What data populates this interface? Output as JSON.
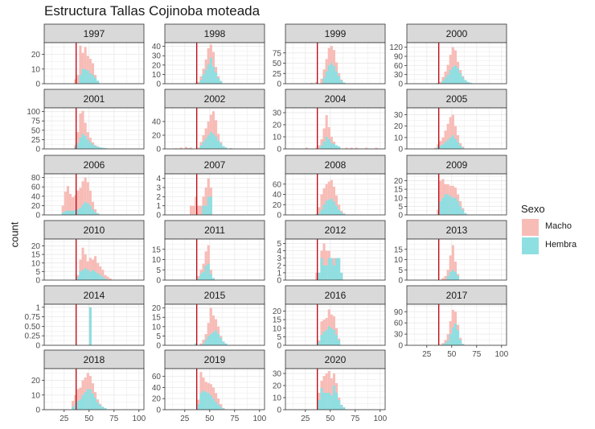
{
  "title": "Estructura Tallas Cojinoba moteada",
  "y_axis_label": "count",
  "legend": {
    "title": "Sexo",
    "items": [
      {
        "label": "Macho",
        "color": "#f8bcb7"
      },
      {
        "label": "Hembra",
        "color": "#8edfe2"
      }
    ]
  },
  "colors": {
    "macho": "#f8bcb7",
    "hembra": "#8edfe2",
    "reference_line": "#c0000b",
    "strip_fill": "#d9d9d9",
    "grid": "#ebebeb"
  },
  "chart_data": {
    "type": "histogram",
    "layout": "facet_wrap",
    "stacked": true,
    "bin_width": 2.5,
    "xlim": [
      5,
      105
    ],
    "x_ticks": [
      25,
      50,
      75,
      100
    ],
    "reference_line_x": 37,
    "grid": true,
    "legend_position": "right",
    "series": [
      "Macho",
      "Hembra"
    ],
    "panels": [
      {
        "label": "1997",
        "y_ticks": [
          0,
          10,
          20
        ],
        "ymax": 28,
        "hembra": {
          "40": 6,
          "42.5": 10,
          "45": 10,
          "47.5": 9,
          "50": 7,
          "52.5": 6,
          "55": 4,
          "57.5": 2
        },
        "total": {
          "35": 3,
          "37.5": 6,
          "40": 26,
          "42.5": 21,
          "45": 25,
          "47.5": 19,
          "50": 17,
          "52.5": 14,
          "55": 6,
          "57.5": 2
        }
      },
      {
        "label": "1998",
        "y_ticks": [
          0,
          10,
          20,
          30,
          40
        ],
        "ymax": 44,
        "hembra": {
          "40": 4,
          "42.5": 10,
          "45": 15,
          "47.5": 21,
          "50": 28,
          "52.5": 18,
          "55": 12,
          "57.5": 6,
          "60": 3
        },
        "total": {
          "35": 1,
          "37.5": 2,
          "40": 8,
          "42.5": 16,
          "45": 26,
          "47.5": 38,
          "50": 42,
          "52.5": 34,
          "55": 18,
          "57.5": 8,
          "60": 3
        }
      },
      {
        "label": "1999",
        "y_ticks": [
          0,
          25,
          50,
          75
        ],
        "ymax": 100,
        "hembra": {
          "42.5": 15,
          "45": 30,
          "47.5": 45,
          "50": 50,
          "52.5": 43,
          "55": 30,
          "57.5": 18,
          "60": 8,
          "62.5": 3
        },
        "total": {
          "25": 1,
          "30": 2,
          "35": 4,
          "40": 12,
          "42.5": 35,
          "45": 60,
          "47.5": 87,
          "50": 92,
          "52.5": 82,
          "55": 52,
          "57.5": 26,
          "60": 10,
          "62.5": 3
        }
      },
      {
        "label": "2000",
        "y_ticks": [
          0,
          30,
          60,
          90,
          120
        ],
        "ymax": 135,
        "hembra": {
          "35": 2,
          "40": 10,
          "42.5": 20,
          "45": 30,
          "47.5": 45,
          "50": 55,
          "52.5": 60,
          "55": 50,
          "57.5": 35,
          "60": 22,
          "62.5": 12,
          "65": 6,
          "67.5": 3,
          "70": 1
        },
        "total": {
          "32.5": 1,
          "35": 3,
          "37.5": 6,
          "40": 22,
          "42.5": 40,
          "45": 62,
          "47.5": 95,
          "50": 120,
          "52.5": 110,
          "55": 72,
          "57.5": 45,
          "60": 25,
          "62.5": 12,
          "65": 6,
          "67.5": 3,
          "70": 1
        }
      },
      {
        "label": "2001",
        "y_ticks": [
          0,
          25,
          50,
          75,
          100
        ],
        "ymax": 110,
        "hembra": {
          "35": 5,
          "37.5": 15,
          "40": 30,
          "42.5": 40,
          "45": 35,
          "47.5": 25,
          "50": 18,
          "52.5": 12,
          "55": 8,
          "57.5": 6,
          "60": 4,
          "62.5": 3,
          "65": 2,
          "67.5": 1
        },
        "total": {
          "35": 10,
          "37.5": 45,
          "40": 95,
          "42.5": 102,
          "45": 70,
          "47.5": 45,
          "50": 30,
          "52.5": 18,
          "55": 10,
          "57.5": 7,
          "60": 4,
          "62.5": 3,
          "65": 2,
          "67.5": 1
        }
      },
      {
        "label": "2002",
        "y_ticks": [
          0,
          20,
          40
        ],
        "ymax": 60,
        "hembra": {
          "27.5": 1,
          "40": 5,
          "42.5": 10,
          "45": 15,
          "47.5": 20,
          "50": 25,
          "52.5": 22,
          "55": 18,
          "57.5": 12,
          "60": 8,
          "62.5": 4,
          "65": 2,
          "70": 1
        },
        "total": {
          "15": 1,
          "20": 2,
          "25": 3,
          "27.5": 1,
          "30": 2,
          "37.5": 2,
          "40": 10,
          "42.5": 20,
          "45": 30,
          "47.5": 40,
          "50": 50,
          "52.5": 55,
          "55": 42,
          "57.5": 22,
          "60": 10,
          "62.5": 4,
          "65": 2,
          "70": 1
        }
      },
      {
        "label": "2004",
        "y_ticks": [
          0,
          10,
          20,
          30
        ],
        "ymax": 34,
        "hembra": {
          "40": 3,
          "42.5": 6,
          "45": 10,
          "47.5": 8,
          "50": 5,
          "52.5": 4,
          "55": 3,
          "57.5": 2
        },
        "total": {
          "25": 1,
          "35": 1,
          "37.5": 3,
          "40": 8,
          "42.5": 17,
          "45": 28,
          "47.5": 18,
          "50": 10,
          "52.5": 6,
          "55": 3,
          "57.5": 2,
          "65": 1,
          "70": 1,
          "75": 1,
          "85": 1,
          "95": 1
        }
      },
      {
        "label": "2005",
        "y_ticks": [
          0,
          10,
          20,
          30
        ],
        "ymax": 36,
        "hembra": {
          "35": 2,
          "37.5": 3,
          "40": 4,
          "42.5": 6,
          "45": 8,
          "47.5": 10,
          "50": 12,
          "52.5": 9,
          "55": 6,
          "57.5": 3,
          "60": 1
        },
        "total": {
          "32.5": 1,
          "35": 4,
          "37.5": 7,
          "40": 10,
          "42.5": 16,
          "45": 22,
          "47.5": 28,
          "50": 30,
          "52.5": 20,
          "55": 12,
          "57.5": 5,
          "60": 2
        }
      },
      {
        "label": "2006",
        "y_ticks": [
          0,
          20,
          40,
          60,
          80
        ],
        "ymax": 88,
        "hembra": {
          "22.5": 5,
          "25": 8,
          "27.5": 10,
          "30": 8,
          "32.5": 9,
          "35": 10,
          "37.5": 12,
          "40": 15,
          "42.5": 22,
          "45": 28,
          "47.5": 25,
          "50": 20,
          "52.5": 12,
          "55": 6,
          "57.5": 3
        },
        "total": {
          "22.5": 20,
          "25": 50,
          "27.5": 62,
          "30": 45,
          "32.5": 38,
          "35": 42,
          "37.5": 52,
          "40": 58,
          "42.5": 72,
          "45": 80,
          "47.5": 70,
          "50": 52,
          "52.5": 28,
          "55": 12,
          "57.5": 4
        }
      },
      {
        "label": "2007",
        "y_ticks": [
          0,
          1,
          2,
          3,
          4
        ],
        "ymax": 4.5,
        "hembra": {
          "42.5": 1,
          "45": 1,
          "47.5": 2,
          "50": 2
        },
        "total": {
          "30": 1,
          "32.5": 1,
          "35": 2,
          "37.5": 1,
          "40": 1,
          "42.5": 2,
          "45": 3,
          "47.5": 4,
          "50": 3
        }
      },
      {
        "label": "2008",
        "y_ticks": [
          0,
          20,
          40,
          60
        ],
        "ymax": 80,
        "hembra": {
          "37.5": 3,
          "40": 10,
          "42.5": 20,
          "45": 28,
          "47.5": 30,
          "50": 32,
          "52.5": 26,
          "55": 18,
          "57.5": 10,
          "60": 5,
          "62.5": 2
        },
        "total": {
          "35": 2,
          "37.5": 15,
          "40": 40,
          "42.5": 52,
          "45": 60,
          "47.5": 65,
          "50": 68,
          "52.5": 55,
          "55": 38,
          "57.5": 20,
          "60": 8,
          "62.5": 3
        }
      },
      {
        "label": "2009",
        "y_ticks": [
          0,
          5,
          10,
          15,
          20
        ],
        "ymax": 24,
        "hembra": {
          "37.5": 8,
          "40": 10,
          "42.5": 12,
          "45": 12,
          "47.5": 11,
          "50": 10,
          "52.5": 10,
          "55": 8,
          "57.5": 5,
          "60": 3,
          "62.5": 1
        },
        "total": {
          "35": 3,
          "37.5": 20,
          "40": 21,
          "42.5": 18,
          "45": 18,
          "47.5": 17,
          "50": 17,
          "52.5": 16,
          "55": 12,
          "57.5": 8,
          "60": 4,
          "62.5": 1
        }
      },
      {
        "label": "2010",
        "y_ticks": [
          0,
          5,
          10,
          15,
          20
        ],
        "ymax": 24,
        "hembra": {
          "37.5": 2,
          "40": 5,
          "42.5": 6,
          "45": 7,
          "47.5": 6,
          "50": 5,
          "52.5": 6,
          "55": 5,
          "57.5": 4,
          "60": 3,
          "62.5": 2,
          "65": 1
        },
        "total": {
          "37.5": 3,
          "40": 12,
          "42.5": 19,
          "45": 15,
          "47.5": 11,
          "50": 13,
          "52.5": 12,
          "55": 14,
          "57.5": 10,
          "60": 8,
          "62.5": 6,
          "65": 3,
          "67.5": 2,
          "70": 1
        }
      },
      {
        "label": "2011",
        "y_ticks": [
          0,
          5,
          10,
          15
        ],
        "ymax": 20,
        "hembra": {
          "37.5": 1,
          "40": 3,
          "42.5": 4,
          "45": 7,
          "47.5": 8,
          "50": 3,
          "52.5": 1
        },
        "total": {
          "37.5": 2,
          "40": 5,
          "42.5": 8,
          "45": 14,
          "47.5": 17,
          "50": 5,
          "52.5": 1
        }
      },
      {
        "label": "2012",
        "y_ticks": [
          0,
          1,
          2,
          3,
          4,
          5
        ],
        "ymax": 5.6,
        "hembra": {
          "37.5": 1,
          "40": 3,
          "42.5": 2,
          "45": 2,
          "47.5": 3,
          "50": 3,
          "52.5": 2,
          "55": 3,
          "57.5": 3,
          "60": 1
        },
        "total": {
          "35": 1,
          "37.5": 1,
          "40": 4,
          "42.5": 5,
          "45": 4,
          "47.5": 4,
          "50": 3,
          "52.5": 3,
          "55": 3,
          "57.5": 3,
          "60": 1
        }
      },
      {
        "label": "2013",
        "y_ticks": [
          0,
          5,
          10,
          15
        ],
        "ymax": 20,
        "hembra": {
          "45": 2,
          "47.5": 4,
          "50": 5,
          "52.5": 4,
          "55": 2
        },
        "total": {
          "40": 1,
          "42.5": 2,
          "45": 5,
          "47.5": 12,
          "50": 17,
          "52.5": 9,
          "55": 3
        }
      },
      {
        "label": "2014",
        "y_ticks": [
          0.0,
          0.25,
          0.5,
          0.75,
          1.0
        ],
        "ymax": 1.08,
        "hembra": {
          "50": 1
        },
        "total": {
          "50": 1
        }
      },
      {
        "label": "2015",
        "y_ticks": [
          0,
          5,
          10,
          15,
          20
        ],
        "ymax": 22,
        "hembra": {
          "35": 1,
          "42.5": 1,
          "45": 3,
          "47.5": 5,
          "50": 6,
          "52.5": 7,
          "55": 8,
          "57.5": 6,
          "60": 4,
          "62.5": 2,
          "65": 1
        },
        "total": {
          "35": 1,
          "40": 1,
          "42.5": 3,
          "45": 6,
          "47.5": 12,
          "50": 20,
          "52.5": 16,
          "55": 14,
          "57.5": 10,
          "60": 5,
          "62.5": 2,
          "65": 1
        }
      },
      {
        "label": "2016",
        "y_ticks": [
          0,
          5,
          10,
          15,
          20
        ],
        "ymax": 24,
        "hembra": {
          "37.5": 2,
          "40": 6,
          "42.5": 8,
          "45": 9,
          "47.5": 11,
          "50": 10,
          "52.5": 9,
          "55": 6,
          "57.5": 3
        },
        "total": {
          "37.5": 3,
          "40": 14,
          "42.5": 15,
          "45": 16,
          "47.5": 21,
          "50": 18,
          "52.5": 17,
          "55": 10,
          "57.5": 4
        }
      },
      {
        "label": "2017",
        "y_ticks": [
          0,
          30,
          60,
          90
        ],
        "ymax": 110,
        "hembra": {
          "40": 3,
          "42.5": 6,
          "45": 12,
          "47.5": 30,
          "50": 48,
          "52.5": 58,
          "55": 40,
          "57.5": 15,
          "60": 3
        },
        "total": {
          "35": 1,
          "37.5": 2,
          "40": 6,
          "42.5": 14,
          "45": 30,
          "47.5": 65,
          "50": 95,
          "52.5": 90,
          "55": 55,
          "57.5": 20,
          "60": 4
        }
      },
      {
        "label": "2018",
        "y_ticks": [
          0,
          10,
          20
        ],
        "ymax": 28,
        "hembra": {
          "32.5": 2,
          "35": 4,
          "37.5": 6,
          "40": 7,
          "42.5": 10,
          "45": 12,
          "47.5": 14,
          "50": 14,
          "52.5": 11,
          "55": 8,
          "57.5": 5,
          "60": 3,
          "62.5": 2,
          "65": 1
        },
        "total": {
          "32.5": 6,
          "35": 10,
          "37.5": 14,
          "40": 15,
          "42.5": 20,
          "45": 22,
          "47.5": 25,
          "50": 23,
          "52.5": 18,
          "55": 12,
          "57.5": 7,
          "60": 4,
          "62.5": 2,
          "65": 1
        }
      },
      {
        "label": "2019",
        "y_ticks": [
          0,
          20,
          40,
          60
        ],
        "ymax": 74,
        "hembra": {
          "37.5": 10,
          "40": 30,
          "42.5": 34,
          "45": 32,
          "47.5": 30,
          "50": 26,
          "52.5": 20,
          "55": 14,
          "57.5": 9,
          "60": 5,
          "62.5": 2
        },
        "total": {
          "37.5": 18,
          "40": 68,
          "42.5": 58,
          "45": 50,
          "47.5": 48,
          "50": 46,
          "52.5": 40,
          "55": 30,
          "57.5": 20,
          "60": 10,
          "62.5": 3
        }
      },
      {
        "label": "2020",
        "y_ticks": [
          0,
          10,
          20,
          30
        ],
        "ymax": 34,
        "hembra": {
          "37.5": 8,
          "40": 18,
          "42.5": 14,
          "45": 14,
          "47.5": 14,
          "50": 12,
          "52.5": 20,
          "55": 14,
          "57.5": 8,
          "60": 4,
          "62.5": 2
        },
        "total": {
          "37.5": 14,
          "40": 24,
          "42.5": 28,
          "45": 30,
          "47.5": 32,
          "50": 26,
          "52.5": 30,
          "55": 22,
          "57.5": 10,
          "60": 4,
          "62.5": 2
        }
      }
    ]
  }
}
